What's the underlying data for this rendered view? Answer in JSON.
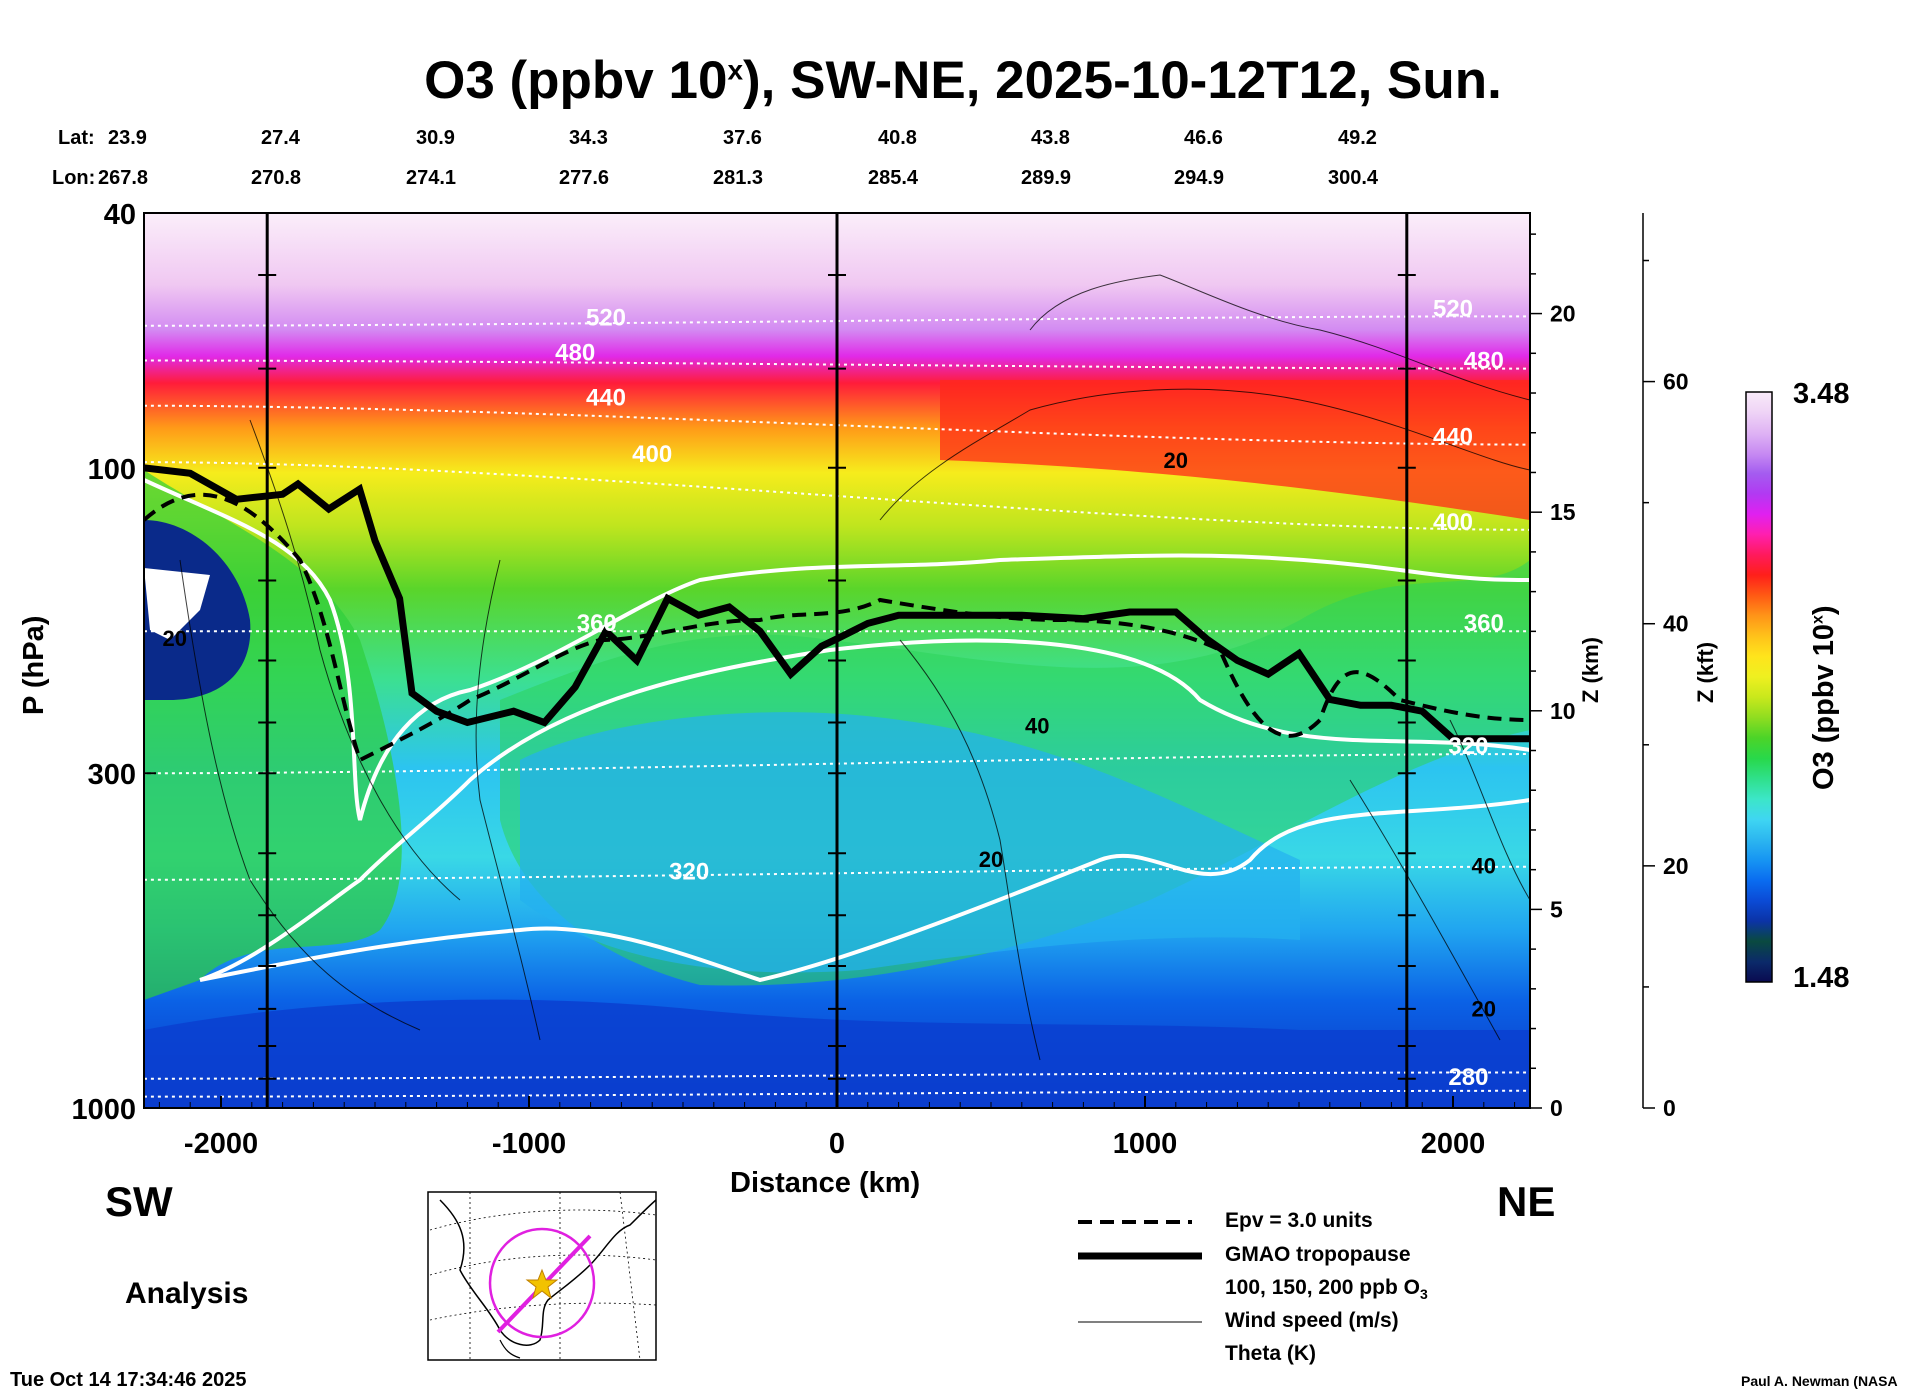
{
  "title": {
    "prefix": "O3 (ppbv 10",
    "sup": "x",
    "suffix": "), SW-NE, 2025-10-12T12, Sun."
  },
  "coords": {
    "lat_label": "Lat:",
    "lon_label": "Lon:",
    "lat": [
      "23.9",
      "27.4",
      "30.9",
      "34.3",
      "37.6",
      "40.8",
      "43.8",
      "46.6",
      "49.2"
    ],
    "lon": [
      "267.8",
      "270.8",
      "274.1",
      "277.6",
      "281.3",
      "285.4",
      "289.9",
      "294.9",
      "300.4"
    ]
  },
  "labels": {
    "sw": "SW",
    "ne": "NE",
    "analysis": "Analysis",
    "timestamp": "Tue Oct 14 17:34:46 2025",
    "credit": "Paul A. Newman (NASA"
  },
  "colorbar": {
    "max_label": "3.48",
    "min_label": "1.48",
    "title_prefix": "O3 (ppbv 10",
    "title_sup": "x",
    "title_suffix": ")",
    "colors": [
      "#0a0a50",
      "#0b2a6a",
      "#0a4a40",
      "#0b33a6",
      "#0b4bd6",
      "#0a6cf0",
      "#1795f2",
      "#2cb6f0",
      "#3fd6f2",
      "#3ce6c8",
      "#2fe08a",
      "#28d84a",
      "#4cd428",
      "#8fdd20",
      "#c9e81c",
      "#eef020",
      "#ffe41c",
      "#ffc21a",
      "#ff9418",
      "#ff5a14",
      "#ff1f1a",
      "#ff1a5c",
      "#ff1fb0",
      "#e020f0",
      "#b13af2",
      "#a45cf0",
      "#c88cf2",
      "#dfb3f4",
      "#efd4f6",
      "#f8eaf8"
    ]
  },
  "legend": {
    "items": [
      "Epv = 3.0 units",
      "GMAO tropopause",
      "100, 150, 200 ppb O",
      "Wind speed (m/s)",
      "Theta (K)"
    ],
    "o3_sub": "3"
  },
  "chart_data": {
    "type": "heatmap",
    "title": "O3 (ppbv 10^x), SW-NE, 2025-10-12T12, Sun.",
    "xlabel": "Distance (km)",
    "ylabel": "P (hPa)",
    "ylabel_right_1": "Z (km)",
    "ylabel_right_2": "Z (kft)",
    "x_range": [
      -2250,
      2250
    ],
    "x_ticks": [
      -2000,
      -1000,
      0,
      1000,
      2000
    ],
    "x_tick_labels": [
      "-2000",
      "-1000",
      "0",
      "1000",
      "2000"
    ],
    "y_range_hpa": [
      1000,
      40
    ],
    "y_ticks_hpa": [
      40,
      100,
      300,
      1000
    ],
    "y_tick_labels": [
      "40",
      "100",
      "300",
      "1000"
    ],
    "z_km_ticks": [
      0,
      5,
      10,
      15,
      20
    ],
    "z_km_labels": [
      "0",
      "5",
      "10",
      "15",
      "20"
    ],
    "z_kft_ticks": [
      0,
      20,
      40,
      60
    ],
    "z_kft_labels": [
      "0",
      "20",
      "40",
      "60"
    ],
    "colorbar_range": [
      1.48,
      3.48
    ],
    "vertical_lines_km": [
      -1850,
      0,
      1850
    ],
    "tropopause_hpa": [
      [
        -2250,
        100
      ],
      [
        -2100,
        102
      ],
      [
        -1950,
        112
      ],
      [
        -1800,
        110
      ],
      [
        -1750,
        106
      ],
      [
        -1650,
        116
      ],
      [
        -1550,
        108
      ],
      [
        -1500,
        130
      ],
      [
        -1420,
        160
      ],
      [
        -1380,
        225
      ],
      [
        -1300,
        240
      ],
      [
        -1200,
        250
      ],
      [
        -1050,
        240
      ],
      [
        -950,
        250
      ],
      [
        -850,
        220
      ],
      [
        -750,
        180
      ],
      [
        -650,
        200
      ],
      [
        -550,
        160
      ],
      [
        -450,
        170
      ],
      [
        -350,
        165
      ],
      [
        -250,
        180
      ],
      [
        -150,
        210
      ],
      [
        -50,
        190
      ],
      [
        0,
        185
      ],
      [
        100,
        175
      ],
      [
        200,
        170
      ],
      [
        400,
        170
      ],
      [
        600,
        170
      ],
      [
        800,
        172
      ],
      [
        950,
        168
      ],
      [
        1100,
        168
      ],
      [
        1200,
        185
      ],
      [
        1300,
        200
      ],
      [
        1400,
        210
      ],
      [
        1500,
        195
      ],
      [
        1600,
        230
      ],
      [
        1700,
        235
      ],
      [
        1800,
        235
      ],
      [
        1900,
        240
      ],
      [
        2000,
        265
      ],
      [
        2250,
        265
      ]
    ],
    "theta_labels": [
      {
        "x": -750,
        "p": 60,
        "text": "520"
      },
      {
        "x": -850,
        "p": 68,
        "text": "480"
      },
      {
        "x": -750,
        "p": 80,
        "text": "440"
      },
      {
        "x": -600,
        "p": 98,
        "text": "400"
      },
      {
        "x": -780,
        "p": 180,
        "text": "360"
      },
      {
        "x": -480,
        "p": 440,
        "text": "320"
      },
      {
        "x": 2000,
        "p": 58,
        "text": "520"
      },
      {
        "x": 2100,
        "p": 70,
        "text": "480"
      },
      {
        "x": 2000,
        "p": 92,
        "text": "440"
      },
      {
        "x": 2000,
        "p": 125,
        "text": "400"
      },
      {
        "x": 2100,
        "p": 180,
        "text": "360"
      },
      {
        "x": 2050,
        "p": 280,
        "text": "320"
      },
      {
        "x": 2050,
        "p": 920,
        "text": "280"
      }
    ],
    "wind_labels": [
      {
        "x": -2150,
        "p": 190,
        "text": "20"
      },
      {
        "x": 1100,
        "p": 100,
        "text": "20"
      },
      {
        "x": 650,
        "p": 260,
        "text": "40"
      },
      {
        "x": 500,
        "p": 420,
        "text": "20"
      },
      {
        "x": 2100,
        "p": 430,
        "text": "40"
      },
      {
        "x": 2100,
        "p": 720,
        "text": "20"
      }
    ]
  }
}
